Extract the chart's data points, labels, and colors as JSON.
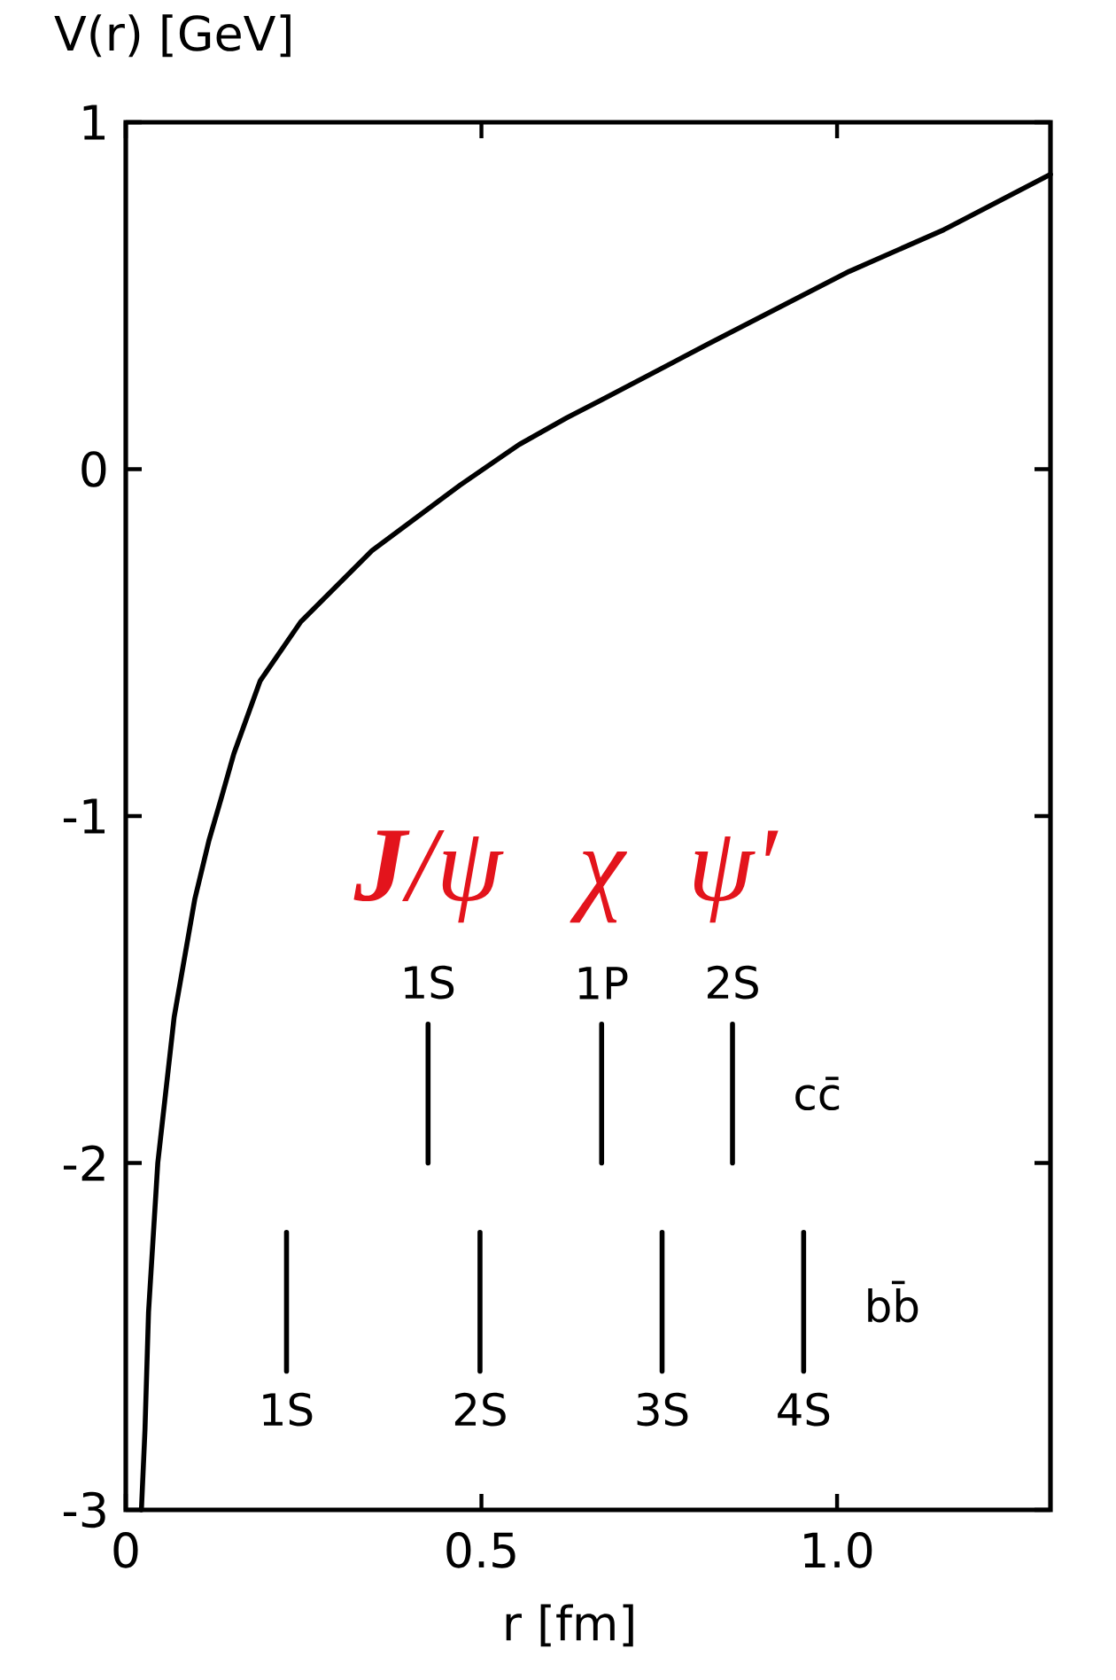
{
  "chart_data": {
    "type": "line",
    "xlabel": "r [fm]",
    "ylabel": "V(r) [GeV]",
    "xlim": [
      0,
      1.3
    ],
    "ylim": [
      -3,
      1
    ],
    "xticks": [
      0,
      0.5,
      {
        "value": 1,
        "label": "1.0"
      }
    ],
    "yticks": [
      -3,
      -2,
      -1,
      0,
      1
    ],
    "series": [
      {
        "color": "#000000",
        "x": [
          0.022,
          0.027,
          0.032,
          0.045,
          0.068,
          0.097,
          0.117,
          0.134,
          0.152,
          0.189,
          0.246,
          0.346,
          0.47,
          0.553,
          0.62,
          0.669,
          0.818,
          1.017,
          1.15,
          1.3
        ],
        "values": [
          -3.0,
          -2.77,
          -2.43,
          -2.0,
          -1.58,
          -1.24,
          -1.07,
          -0.95,
          -0.82,
          -0.61,
          -0.44,
          -0.235,
          -0.046,
          0.071,
          0.148,
          0.2,
          0.36,
          0.57,
          0.69,
          0.85
        ]
      },
      {
        "name": "1S",
        "color": "#000000",
        "x": [
          0.425,
          0.425
        ],
        "values": [
          -2.0,
          -1.6
        ]
      },
      {
        "name": "1P",
        "color": "#000000",
        "x": [
          0.669,
          0.669
        ],
        "values": [
          -2.0,
          -1.6
        ]
      },
      {
        "name": "2S",
        "color": "#000000",
        "x": [
          0.853,
          0.853
        ],
        "values": [
          -2.0,
          -1.6
        ]
      },
      {
        "name": "1S",
        "color": "#000000",
        "x": [
          0.226,
          0.226
        ],
        "values": [
          -2.2,
          -2.6
        ]
      },
      {
        "name": "2S",
        "color": "#000000",
        "x": [
          0.498,
          0.498
        ],
        "values": [
          -2.2,
          -2.6
        ]
      },
      {
        "name": "3S",
        "color": "#000000",
        "x": [
          0.754,
          0.754
        ],
        "values": [
          -2.2,
          -2.6
        ]
      },
      {
        "name": "4S",
        "color": "#000000",
        "x": [
          0.953,
          0.953
        ],
        "values": [
          -2.2,
          -2.6
        ]
      }
    ],
    "annotations": [
      {
        "text": "**J**/ψ",
        "x": 0.425,
        "y": -1.6
      },
      {
        "text": "χ",
        "x": 0.669,
        "y": -1.6
      },
      {
        "text": "ψ′",
        "x": 0.853,
        "y": -1.6
      },
      {
        "text": "cc̄",
        "x": 0.853,
        "y": -1.8
      },
      {
        "text": "bb̄",
        "x": 0.953,
        "y": -2.4
      }
    ]
  }
}
